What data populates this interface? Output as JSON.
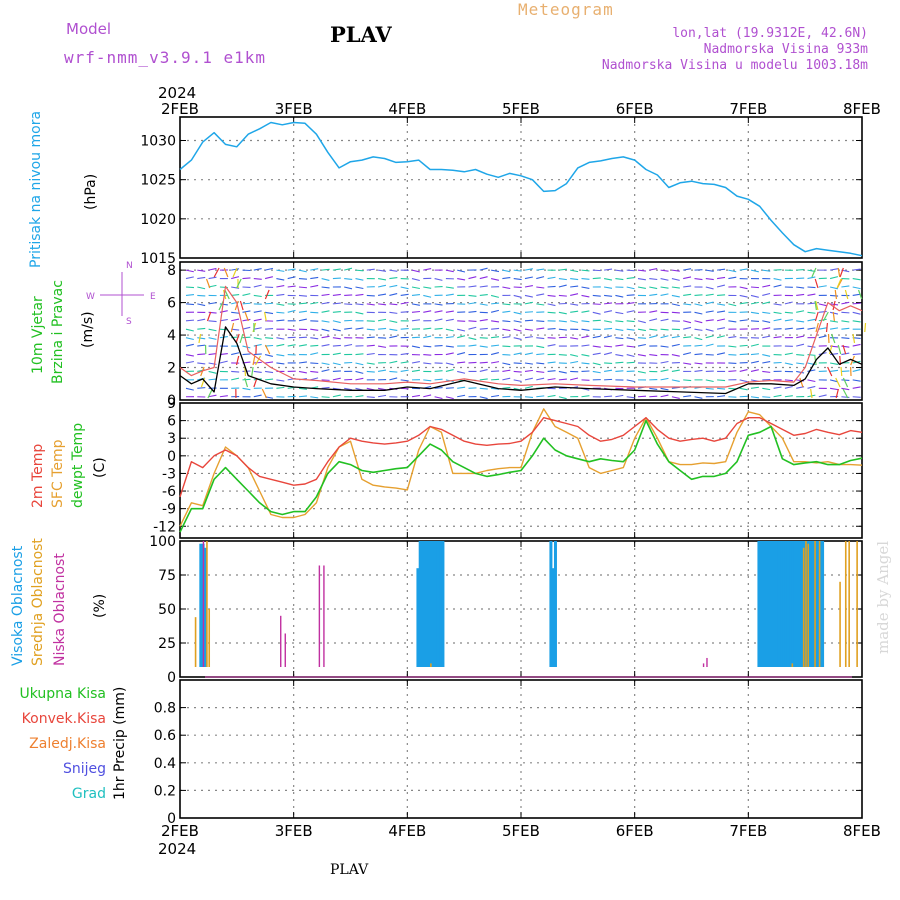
{
  "header": {
    "model_label": "Model",
    "model_name": "wrf-nmm_v3.9.1 e1km",
    "station_title": "PLAV",
    "meteogram_label": "Meteogram",
    "lonlat": "lon,lat (19.9312E, 42.6N)",
    "elevation": "Nadmorska Visina 933m",
    "model_elevation": "Nadmorska Visina u modelu 1003.18m"
  },
  "footer": {
    "station": "PLAV"
  },
  "watermark": "made by Angel",
  "colors": {
    "pressure": "#1fa6e8",
    "temp2m": "#e8463c",
    "sfc": "#e6a030",
    "dewpt": "#22c022",
    "high_cloud": "#1a9fe6",
    "mid_cloud": "#e0a020",
    "low_cloud": "#c030a0",
    "purple": "#b050d0"
  },
  "chart_data": [
    {
      "type": "line",
      "panel": "pressure",
      "labels": [
        "Pritisak na nivou mora",
        "(hPa)"
      ],
      "x_year": "2024",
      "x_ticks": [
        "2FEB",
        "3FEB",
        "4FEB",
        "5FEB",
        "6FEB",
        "7FEB",
        "8FEB"
      ],
      "x_range_days": [
        0,
        6
      ],
      "ylim": [
        1015,
        1033
      ],
      "y_ticks": [
        "1015",
        "1020",
        "1025",
        "1030"
      ],
      "series": [
        {
          "name": "",
          "x": [
            0,
            0.1,
            0.2,
            0.3,
            0.4,
            0.5,
            0.6,
            0.7,
            0.8,
            0.9,
            1.0,
            1.1,
            1.2,
            1.3,
            1.4,
            1.5,
            1.6,
            1.7,
            1.8,
            1.9,
            2.0,
            2.1,
            2.2,
            2.3,
            2.4,
            2.5,
            2.6,
            2.7,
            2.8,
            2.9,
            3.0,
            3.1,
            3.2,
            3.3,
            3.4,
            3.5,
            3.6,
            3.7,
            3.8,
            3.9,
            4.0,
            4.1,
            4.2,
            4.3,
            4.4,
            4.5,
            4.6,
            4.7,
            4.8,
            4.9,
            5.0,
            5.1,
            5.2,
            5.3,
            5.4,
            5.5,
            5.6,
            5.7,
            5.8,
            5.9,
            6.0
          ],
          "values": [
            1026.3,
            1027.5,
            1029.8,
            1031.0,
            1029.5,
            1029.2,
            1030.8,
            1031.5,
            1032.3,
            1032.0,
            1032.3,
            1032.2,
            1030.8,
            1028.5,
            1026.5,
            1027.3,
            1027.5,
            1027.9,
            1027.7,
            1027.2,
            1027.3,
            1027.5,
            1026.3,
            1026.3,
            1026.2,
            1026.0,
            1026.3,
            1025.7,
            1025.3,
            1025.8,
            1025.5,
            1025.0,
            1023.5,
            1023.6,
            1024.5,
            1026.5,
            1027.2,
            1027.4,
            1027.7,
            1027.9,
            1027.5,
            1026.3,
            1025.6,
            1024.0,
            1024.6,
            1024.8,
            1024.5,
            1024.4,
            1024.0,
            1022.9,
            1022.5,
            1021.6,
            1019.8,
            1018.2,
            1016.7,
            1015.8,
            1016.2,
            1016.0,
            1015.8,
            1015.6,
            1015.3
          ]
        }
      ]
    },
    {
      "type": "line",
      "panel": "wind",
      "labels": [
        "10m Vjetar",
        "Brzina i Pravac",
        "(m/s)"
      ],
      "direction_legend": [
        "N",
        "W",
        "E",
        "S"
      ],
      "ylim": [
        0,
        8.5
      ],
      "y_ticks": [
        "0",
        "2",
        "4",
        "6",
        "8"
      ],
      "series": [
        {
          "name": "",
          "x": [
            0,
            0.1,
            0.2,
            0.3,
            0.4,
            0.5,
            0.6,
            0.8,
            1.0,
            1.2,
            1.5,
            1.8,
            2.0,
            2.2,
            2.5,
            2.8,
            3.0,
            3.3,
            3.6,
            4.0,
            4.4,
            4.8,
            5.0,
            5.2,
            5.4,
            5.5,
            5.6,
            5.7,
            5.8,
            5.9,
            6.0
          ],
          "values": [
            1.5,
            1.0,
            1.3,
            0.5,
            4.5,
            3.5,
            1.5,
            1.0,
            0.8,
            0.7,
            0.6,
            0.6,
            0.8,
            0.7,
            1.2,
            0.7,
            0.6,
            0.8,
            0.7,
            0.6,
            0.5,
            0.4,
            1.0,
            1.0,
            0.9,
            1.3,
            2.5,
            3.2,
            2.2,
            2.5,
            2.2
          ]
        },
        {
          "name": "",
          "x": [
            0,
            0.1,
            0.2,
            0.3,
            0.4,
            0.5,
            0.6,
            0.8,
            1.0,
            1.2,
            1.5,
            1.8,
            2.0,
            2.2,
            2.5,
            2.8,
            3.0,
            3.3,
            3.6,
            4.0,
            4.4,
            4.8,
            5.0,
            5.2,
            5.4,
            5.5,
            5.6,
            5.7,
            5.8,
            5.9,
            6.0
          ],
          "values": [
            2.0,
            1.5,
            1.8,
            2.0,
            7.0,
            6.0,
            3.0,
            2.0,
            1.3,
            1.2,
            1.0,
            1.0,
            1.1,
            1.0,
            1.3,
            1.0,
            0.9,
            1.0,
            0.9,
            0.8,
            0.8,
            0.8,
            1.1,
            1.2,
            1.1,
            2.0,
            4.0,
            6.0,
            5.5,
            5.8,
            5.5
          ]
        }
      ]
    },
    {
      "type": "line",
      "panel": "temperature",
      "labels": [
        "2m Temp",
        "SFC Temp",
        "dewpt Temp",
        "(C)"
      ],
      "ylim": [
        -14,
        9
      ],
      "y_ticks": [
        "-12",
        "-9",
        "-6",
        "-3",
        "0",
        "3",
        "6",
        "9"
      ],
      "series": [
        {
          "name": "2m Temp",
          "x": [
            0,
            0.1,
            0.2,
            0.3,
            0.4,
            0.5,
            0.6,
            0.7,
            0.8,
            0.9,
            1.0,
            1.1,
            1.2,
            1.3,
            1.4,
            1.5,
            1.6,
            1.7,
            1.8,
            1.9,
            2.0,
            2.1,
            2.2,
            2.3,
            2.4,
            2.5,
            2.6,
            2.7,
            2.8,
            2.9,
            3.0,
            3.1,
            3.2,
            3.3,
            3.4,
            3.5,
            3.6,
            3.7,
            3.8,
            3.9,
            4.0,
            4.1,
            4.2,
            4.3,
            4.4,
            4.5,
            4.6,
            4.7,
            4.8,
            4.9,
            5.0,
            5.1,
            5.2,
            5.3,
            5.4,
            5.5,
            5.6,
            5.7,
            5.8,
            5.9,
            6.0
          ],
          "values": [
            -7,
            -1,
            -2,
            0,
            1,
            0,
            -2,
            -3.5,
            -4,
            -4.5,
            -5,
            -4.8,
            -4,
            -1,
            1.5,
            3,
            2.5,
            2.2,
            2.0,
            2.2,
            2.5,
            3.5,
            5,
            4.5,
            3.5,
            2.5,
            2.0,
            1.8,
            2.0,
            2.1,
            2.5,
            4.0,
            6.5,
            6.0,
            5.5,
            5.0,
            3.5,
            2.5,
            2.8,
            3.5,
            5.0,
            6.5,
            4.5,
            3.0,
            2.5,
            2.8,
            3.0,
            2.5,
            3.0,
            5.5,
            6.5,
            6.5,
            5.5,
            4.5,
            3.5,
            3.8,
            4.5,
            4.0,
            3.6,
            4.3,
            4.0
          ]
        },
        {
          "name": "SFC Temp",
          "x": [
            0,
            0.1,
            0.2,
            0.3,
            0.4,
            0.5,
            0.6,
            0.7,
            0.8,
            0.9,
            1.0,
            1.1,
            1.2,
            1.3,
            1.4,
            1.5,
            1.6,
            1.7,
            1.8,
            1.9,
            2.0,
            2.1,
            2.2,
            2.3,
            2.4,
            2.5,
            2.6,
            2.7,
            2.8,
            2.9,
            3.0,
            3.1,
            3.2,
            3.3,
            3.4,
            3.5,
            3.6,
            3.7,
            3.8,
            3.9,
            4.0,
            4.1,
            4.2,
            4.3,
            4.4,
            4.5,
            4.6,
            4.7,
            4.8,
            4.9,
            5.0,
            5.1,
            5.2,
            5.3,
            5.4,
            5.5,
            5.6,
            5.7,
            5.8,
            5.9,
            6.0
          ],
          "values": [
            -12,
            -8,
            -8.5,
            -3,
            1.5,
            0,
            -2,
            -6,
            -10,
            -10.5,
            -10.5,
            -10,
            -8,
            -2,
            1.5,
            2.5,
            -4,
            -5,
            -5.3,
            -5.5,
            -5.8,
            1,
            5,
            4,
            -3,
            -3,
            -3,
            -2.5,
            -2.2,
            -2,
            -2,
            4,
            8,
            5,
            4,
            3,
            -2,
            -3,
            -2.5,
            -2,
            3,
            6.5,
            3,
            -1,
            -1.5,
            -1.5,
            -1.2,
            -1.3,
            -1,
            4,
            7.5,
            7,
            5,
            3,
            -1,
            -1,
            -1.2,
            -1,
            -1.5,
            -1.5,
            -1.6
          ]
        },
        {
          "name": "dewpt Temp",
          "x": [
            0,
            0.1,
            0.2,
            0.3,
            0.4,
            0.5,
            0.6,
            0.7,
            0.8,
            0.9,
            1.0,
            1.1,
            1.2,
            1.3,
            1.4,
            1.5,
            1.6,
            1.7,
            1.8,
            1.9,
            2.0,
            2.1,
            2.2,
            2.3,
            2.4,
            2.5,
            2.6,
            2.7,
            2.8,
            2.9,
            3.0,
            3.1,
            3.2,
            3.3,
            3.4,
            3.5,
            3.6,
            3.7,
            3.8,
            3.9,
            4.0,
            4.1,
            4.2,
            4.3,
            4.4,
            4.5,
            4.6,
            4.7,
            4.8,
            4.9,
            5.0,
            5.1,
            5.2,
            5.3,
            5.4,
            5.5,
            5.6,
            5.7,
            5.8,
            5.9,
            6.0
          ],
          "values": [
            -13,
            -9,
            -9,
            -4,
            -2,
            -4,
            -6,
            -8,
            -9.5,
            -10,
            -9.5,
            -9.5,
            -7,
            -3,
            -1,
            -1.5,
            -2.5,
            -2.8,
            -2.5,
            -2.2,
            -2.0,
            0,
            2,
            1,
            -1,
            -2,
            -3,
            -3.5,
            -3.2,
            -2.8,
            -2.5,
            0,
            3,
            1,
            0,
            -0.5,
            -1,
            -0.5,
            -0.8,
            -1,
            1,
            6,
            2,
            -1,
            -2.5,
            -4,
            -3.5,
            -3.5,
            -3,
            -1,
            3.5,
            4,
            5,
            -0.5,
            -1.5,
            -1.2,
            -1,
            -1.5,
            -1.5,
            -0.8,
            -0.4
          ]
        }
      ]
    },
    {
      "type": "bar",
      "panel": "clouds",
      "labels": [
        "Visoka Oblacnost",
        "Srednja Oblacnost",
        "Niska Oblacnost",
        "(%)"
      ],
      "ylim": [
        0,
        100
      ],
      "y_ticks": [
        "0",
        "25",
        "50",
        "75",
        "100"
      ],
      "series": [
        {
          "name": "Visoka Oblacnost",
          "x": [
            0.17,
            0.19,
            0.21,
            2.08,
            2.1,
            2.12,
            2.14,
            2.16,
            2.18,
            2.2,
            2.22,
            2.24,
            2.26,
            2.28,
            2.3,
            3.25,
            3.27,
            3.29,
            5.08,
            5.1,
            5.12,
            5.14,
            5.16,
            5.18,
            5.2,
            5.22,
            5.24,
            5.26,
            5.28,
            5.3,
            5.32,
            5.34,
            5.36,
            5.38,
            5.4,
            5.42,
            5.44,
            5.46,
            5.48,
            5.5,
            5.52,
            5.54,
            5.56,
            5.58,
            5.6,
            5.62,
            5.64
          ],
          "values": [
            98,
            98,
            95,
            80,
            100,
            100,
            100,
            100,
            100,
            100,
            100,
            100,
            100,
            100,
            100,
            100,
            80,
            100,
            100,
            100,
            100,
            100,
            100,
            100,
            100,
            100,
            100,
            100,
            100,
            100,
            100,
            100,
            100,
            100,
            100,
            100,
            100,
            100,
            100,
            100,
            100,
            100,
            100,
            100,
            100,
            100,
            100
          ]
        },
        {
          "name": "Srednja Oblacnost",
          "x": [
            0.13,
            0.23,
            0.25,
            2.2,
            5.38,
            5.48,
            5.5,
            5.52,
            5.58,
            5.62,
            5.8,
            5.85,
            5.88,
            5.95
          ],
          "values": [
            44,
            100,
            50,
            10,
            10,
            95,
            100,
            98,
            100,
            100,
            70,
            100,
            100,
            100
          ]
        },
        {
          "name": "Niska Oblacnost",
          "x": [
            0.2,
            0.88,
            0.92,
            1.0,
            1.05,
            1.22,
            1.26,
            4.6,
            4.63
          ],
          "values": [
            100,
            45,
            32,
            3,
            3,
            82,
            82,
            10,
            14
          ]
        }
      ]
    },
    {
      "type": "bar",
      "panel": "precipitation",
      "labels": [
        "Ukupna Kisa",
        "Konvek.Kisa",
        "Zaledj.Kisa",
        "Snijeg",
        "Grad",
        "1hr Precip (mm)"
      ],
      "ylim": [
        0,
        1
      ],
      "y_ticks": [
        "0",
        "0.2",
        "0.4",
        "0.6",
        "0.8"
      ],
      "series": []
    }
  ]
}
